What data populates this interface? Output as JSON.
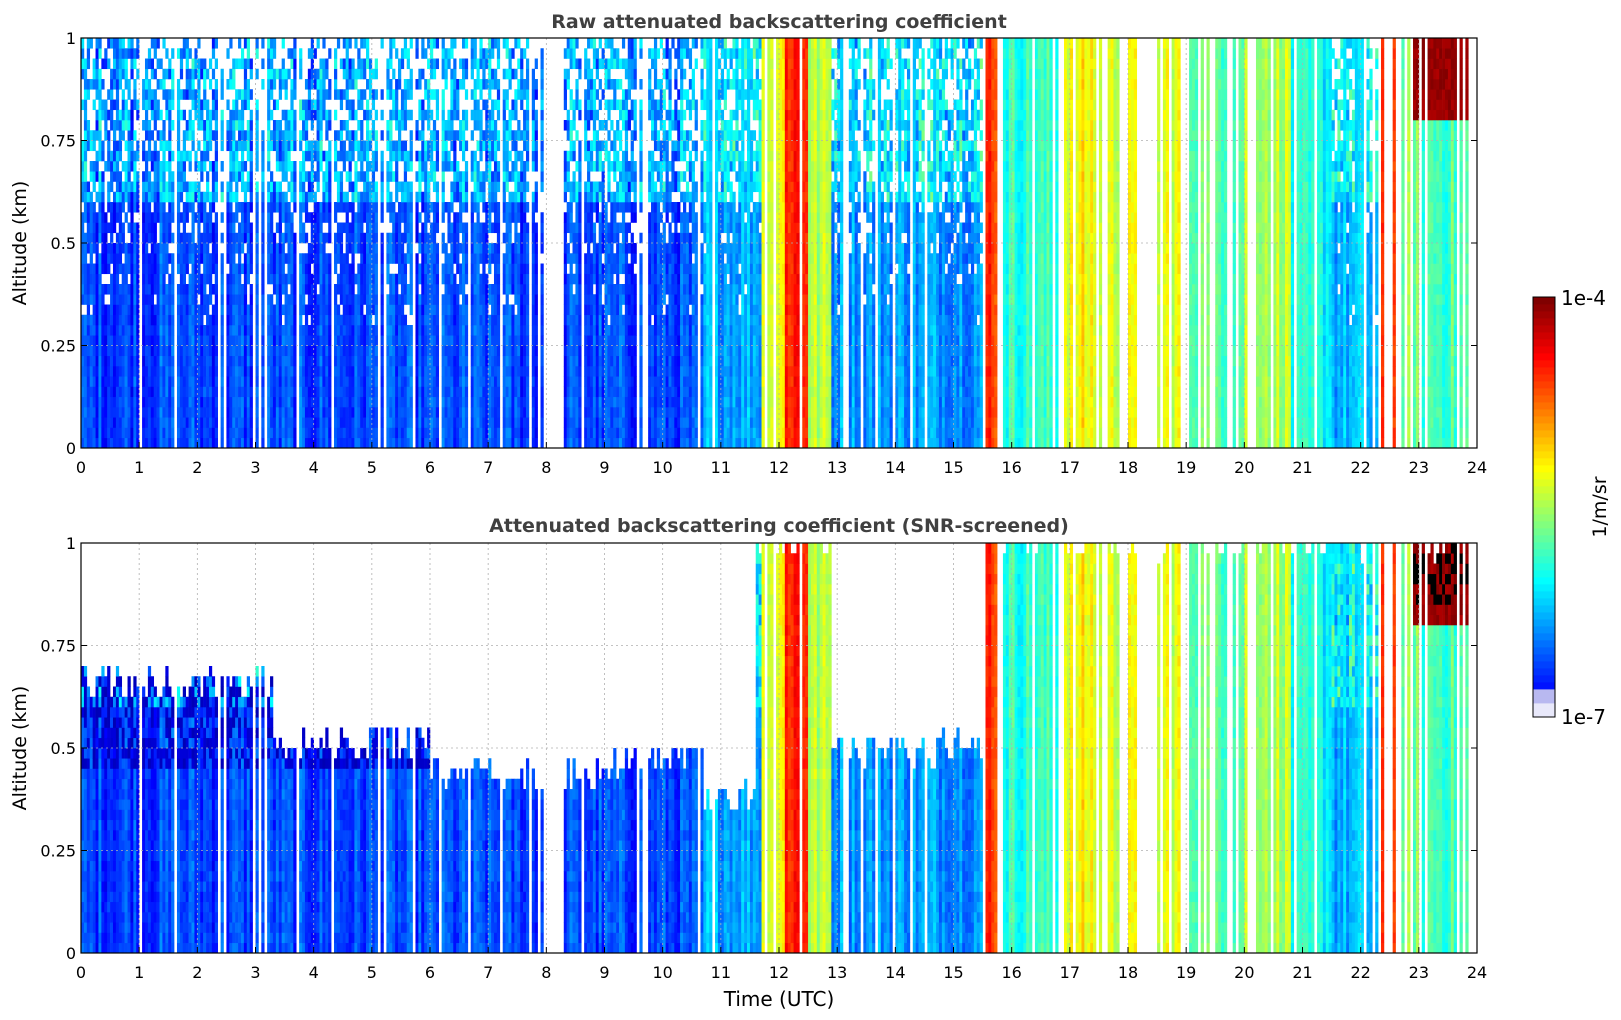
{
  "chart_data": [
    {
      "type": "heatmap",
      "title": "Raw attenuated backscattering coefficient",
      "xlabel": "",
      "ylabel": "Altitude (km)",
      "xlim": [
        0,
        24
      ],
      "ylim": [
        0,
        1
      ],
      "x_ticks": [
        "0",
        "1",
        "2",
        "3",
        "4",
        "5",
        "6",
        "7",
        "8",
        "9",
        "10",
        "11",
        "12",
        "13",
        "14",
        "15",
        "16",
        "17",
        "18",
        "19",
        "20",
        "21",
        "22",
        "23",
        "24"
      ],
      "y_ticks": [
        "0",
        "0.25",
        "0.5",
        "0.75",
        "1"
      ],
      "grid": true,
      "screened": false
    },
    {
      "type": "heatmap",
      "title": "Attenuated backscattering coefficient (SNR-screened)",
      "xlabel": "Time (UTC)",
      "ylabel": "Altitude (km)",
      "xlim": [
        0,
        24
      ],
      "ylim": [
        0,
        1
      ],
      "x_ticks": [
        "0",
        "1",
        "2",
        "3",
        "4",
        "5",
        "6",
        "7",
        "8",
        "9",
        "10",
        "11",
        "12",
        "13",
        "14",
        "15",
        "16",
        "17",
        "18",
        "19",
        "20",
        "21",
        "22",
        "23",
        "24"
      ],
      "y_ticks": [
        "0",
        "0.25",
        "0.5",
        "0.75",
        "1"
      ],
      "grid": true,
      "screened": true
    }
  ],
  "colorbar": {
    "label": "1/m/sr",
    "max_label": "1e-4",
    "min_label": "1e-7",
    "scale": "log",
    "colormap": "jet"
  }
}
